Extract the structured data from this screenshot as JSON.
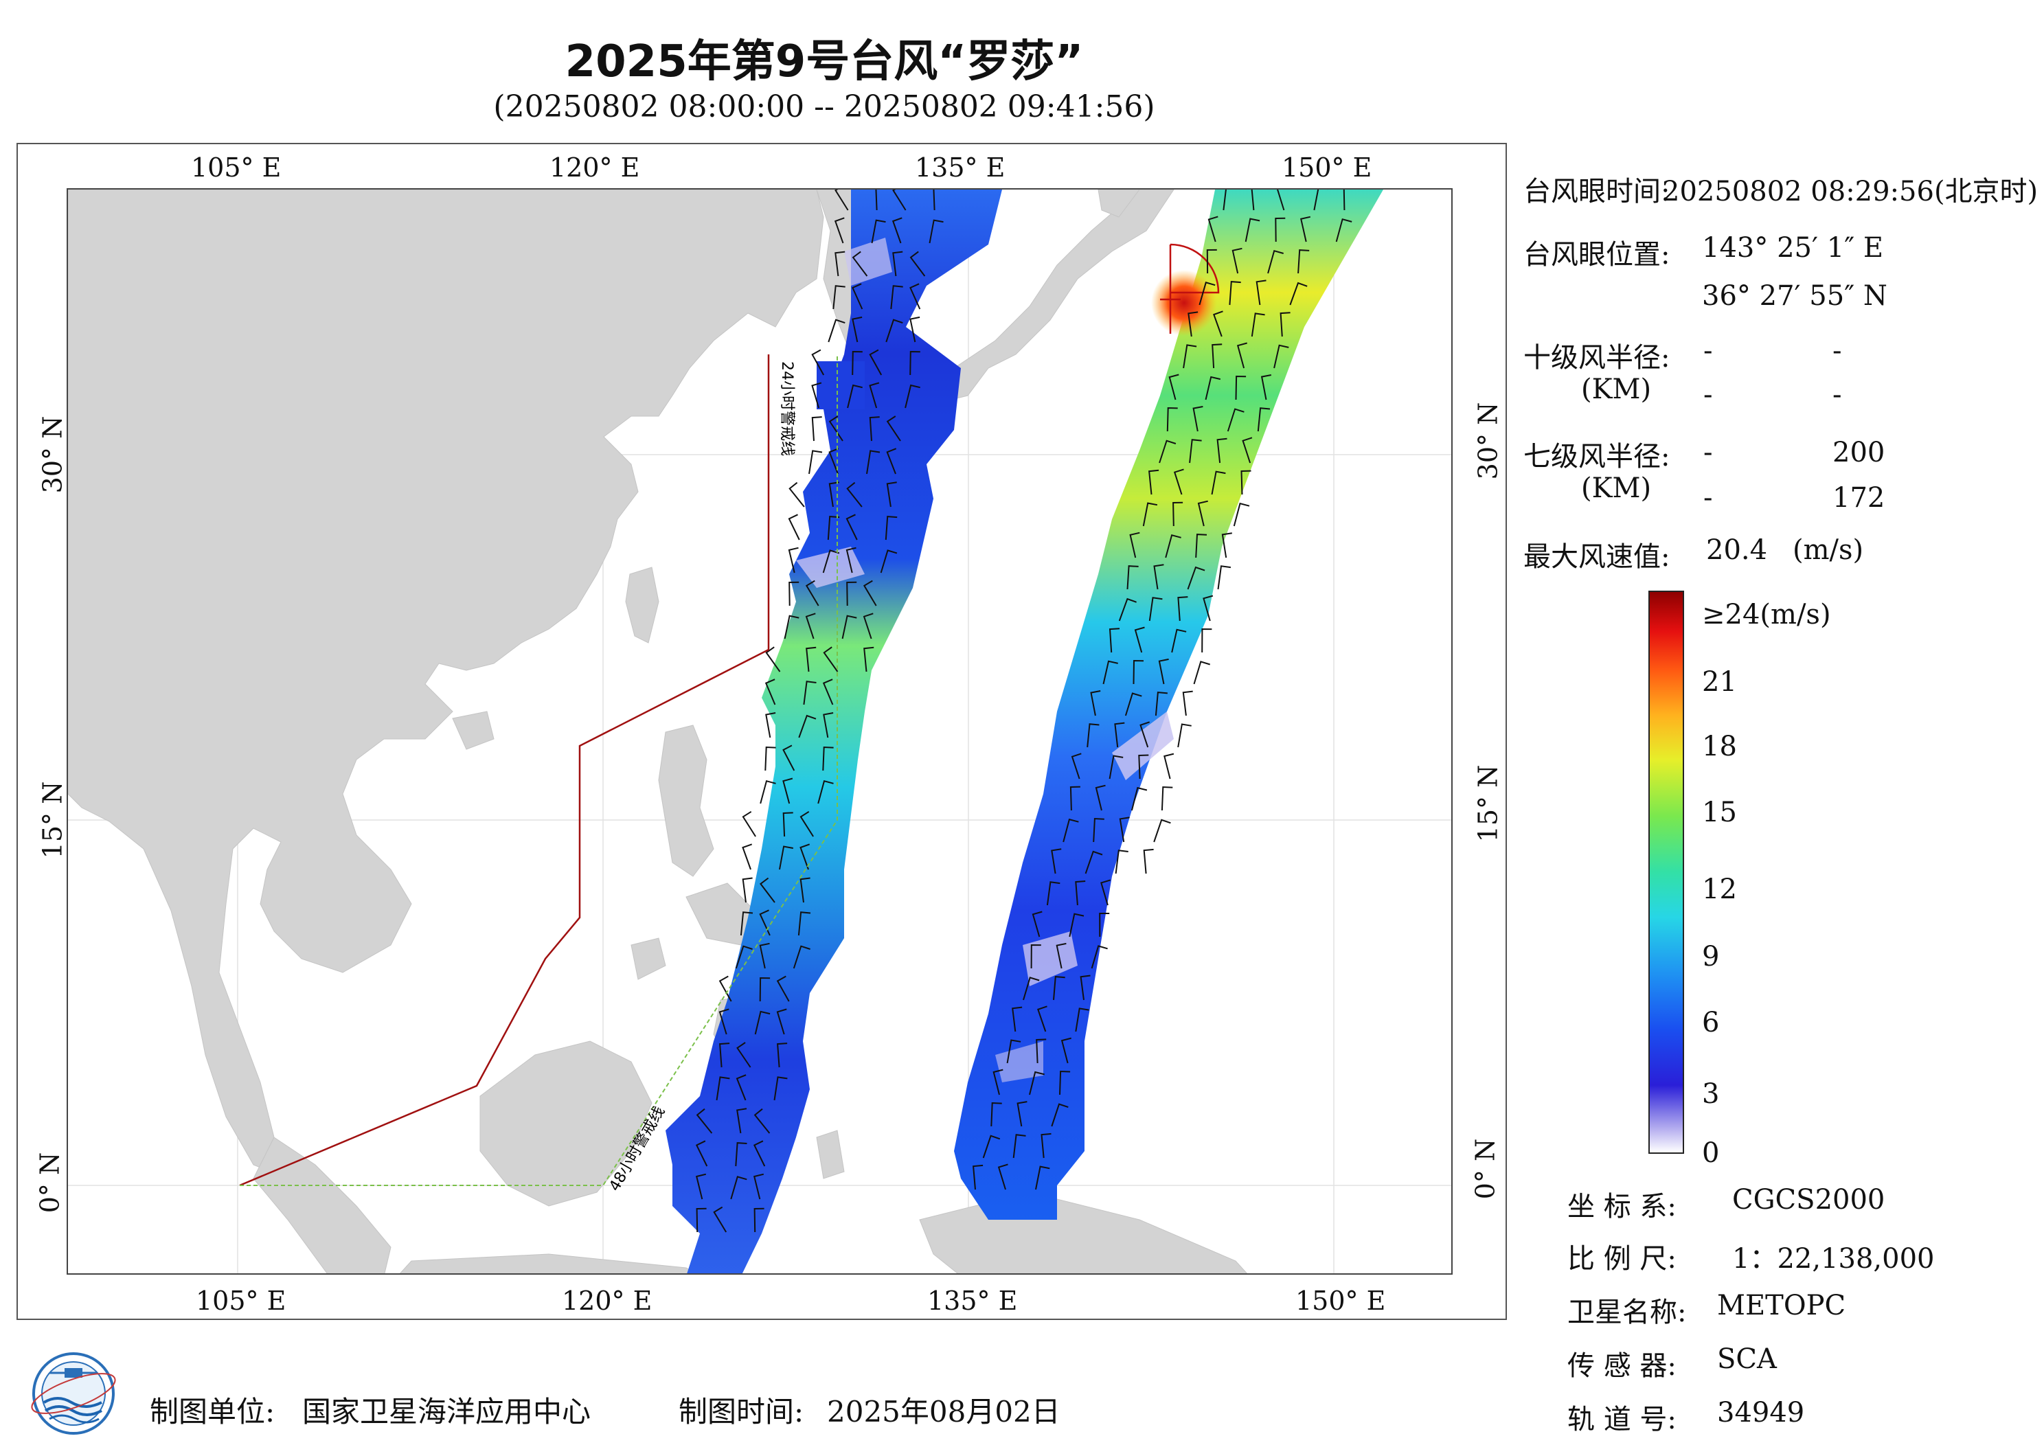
{
  "title": "2025年第9号台风“罗莎”",
  "subtitle": "(20250802 08:00:00 -- 20250802 09:41:56)",
  "axes": {
    "x_ticks": [
      "105° E",
      "120° E",
      "135° E",
      "150° E"
    ],
    "y_ticks": [
      "30° N",
      "15° N",
      "0° N"
    ]
  },
  "map_labels": {
    "line_24h": "24小时警戒线",
    "line_48h": "48小时警戒线"
  },
  "info": {
    "eye_time_label": "台风眼时间:",
    "eye_time_value": "20250802 08:29:56(北京时)",
    "eye_pos_label": "台风眼位置:",
    "eye_lon": "143° 25′ 1″ E",
    "eye_lat": "36° 27′ 55″ N",
    "r10_label": "十级风半径:",
    "r10_unit": "(KM)",
    "r10_values": [
      "-",
      "-",
      "-",
      "-"
    ],
    "r7_label": "七级风半径:",
    "r7_unit": "(KM)",
    "r7_values": [
      "-",
      "200",
      "-",
      "172"
    ],
    "max_wind_label": "最大风速值:",
    "max_wind_value": "20.4",
    "max_wind_unit": "(m/s)"
  },
  "colorbar": {
    "labels": [
      "≥24(m/s)",
      "21",
      "18",
      "15",
      "12",
      "9",
      "6",
      "3",
      "0"
    ],
    "colors": [
      "#8e0000",
      "#e51010",
      "#ff5a12",
      "#ffb21e",
      "#e6ef2a",
      "#7ae84e",
      "#33e0a6",
      "#27d6e6",
      "#1f93f2",
      "#1a4ff0",
      "#2a1fd8",
      "#b9b2f0",
      "#ffffff"
    ]
  },
  "meta": {
    "crs_label": "坐 标 系:",
    "crs_value": "CGCS2000",
    "scale_label": "比 例 尺:",
    "scale_value": "1：22,138,000",
    "sat_label": "卫星名称:",
    "sat_value": "METOPC",
    "sensor_label": "传 感 器:",
    "sensor_value": "SCA",
    "orbit_label": "轨 道 号:",
    "orbit_value": "34949"
  },
  "footer": {
    "org_label": "制图单位:",
    "org_value": "国家卫星海洋应用中心",
    "date_label": "制图时间:",
    "date_value": "2025年08月02日"
  },
  "colors": {
    "land": "#d3d3d3",
    "warning_24h": "#a01010",
    "warning_48h": "#7bc04a"
  }
}
